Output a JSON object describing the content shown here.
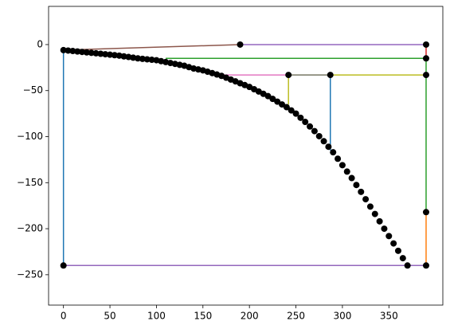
{
  "chart_data": {
    "type": "line",
    "xlim": [
      -16,
      408
    ],
    "ylim": [
      -283,
      41.5
    ],
    "xticks": [
      0,
      50,
      100,
      150,
      200,
      250,
      300,
      350
    ],
    "yticks": [
      {
        "value": 0,
        "label": "0"
      },
      {
        "value": -50,
        "label": "−50"
      },
      {
        "value": -100,
        "label": "−100"
      },
      {
        "value": -150,
        "label": "−150"
      },
      {
        "value": -200,
        "label": "−200"
      },
      {
        "value": -250,
        "label": "−250"
      }
    ],
    "series": [
      {
        "color": "#1f77b4",
        "x": [
          0,
          0
        ],
        "values": [
          -6,
          -240
        ]
      },
      {
        "color": "#9467bd",
        "x": [
          0,
          390
        ],
        "values": [
          -240,
          -240
        ]
      },
      {
        "color": "#ff7f0e",
        "x": [
          390,
          390
        ],
        "values": [
          -240,
          -182
        ]
      },
      {
        "color": "#2ca02c",
        "x": [
          390,
          390,
          110
        ],
        "values": [
          -182,
          -15,
          -15
        ]
      },
      {
        "color": "#d62728",
        "x": [
          390,
          390
        ],
        "values": [
          0,
          -15
        ]
      },
      {
        "color": "#9467bd",
        "x": [
          190,
          390
        ],
        "values": [
          0,
          0
        ]
      },
      {
        "color": "#8c564b",
        "x": [
          0,
          190
        ],
        "values": [
          -6,
          0
        ]
      },
      {
        "color": "#bcbd22",
        "x": [
          390,
          242,
          242
        ],
        "values": [
          -33,
          -33,
          -65
        ]
      },
      {
        "color": "#7f7f7f",
        "x": [
          242,
          287
        ],
        "values": [
          -33,
          -33
        ]
      },
      {
        "color": "#1f77b4",
        "x": [
          287,
          287
        ],
        "values": [
          -33,
          -115
        ]
      },
      {
        "color": "#e377c2",
        "x": [
          170,
          242
        ],
        "values": [
          -33,
          -33
        ]
      },
      {
        "color": "#000000",
        "marker": true,
        "x": [
          0,
          5,
          10,
          15,
          20,
          25,
          30,
          35,
          40,
          45,
          50,
          55,
          60,
          65,
          70,
          75,
          80,
          85,
          90,
          95,
          100,
          105,
          110,
          115,
          120,
          125,
          130,
          135,
          140,
          145,
          150,
          155,
          160,
          165,
          170,
          175,
          180,
          185,
          190,
          195,
          200,
          205,
          210,
          215,
          220,
          225,
          230,
          235,
          240,
          245,
          250,
          255,
          260,
          265,
          270,
          275,
          280,
          285,
          290,
          295,
          300,
          305,
          310,
          315,
          320,
          325,
          330,
          335,
          340,
          345,
          350,
          355,
          360,
          365,
          370,
          190,
          390,
          390,
          390,
          242,
          287,
          390,
          390,
          0
        ],
        "values": [
          -6,
          -6.5,
          -7,
          -7.5,
          -8,
          -8.5,
          -9,
          -9.5,
          -10,
          -10.5,
          -11,
          -11.5,
          -12,
          -12.8,
          -13.5,
          -14.2,
          -15,
          -15.5,
          -16,
          -16.5,
          -17,
          -18,
          -19,
          -20,
          -21,
          -22,
          -23,
          -24.5,
          -26,
          -27,
          -28,
          -29.5,
          -31,
          -32.5,
          -34,
          -36,
          -38,
          -40,
          -42,
          -44,
          -46,
          -48.5,
          -51,
          -53.5,
          -56,
          -59,
          -62,
          -65,
          -68,
          -71.5,
          -75,
          -79.5,
          -84,
          -89,
          -94,
          -99.5,
          -105,
          -111,
          -117,
          -124,
          -131,
          -138,
          -145,
          -152.5,
          -160,
          -168,
          -176,
          -184,
          -192,
          -200,
          -208,
          -216,
          -224,
          -232,
          -240,
          0,
          0,
          -15,
          -33,
          -33,
          -33,
          -182,
          -240,
          -240
        ]
      }
    ]
  }
}
